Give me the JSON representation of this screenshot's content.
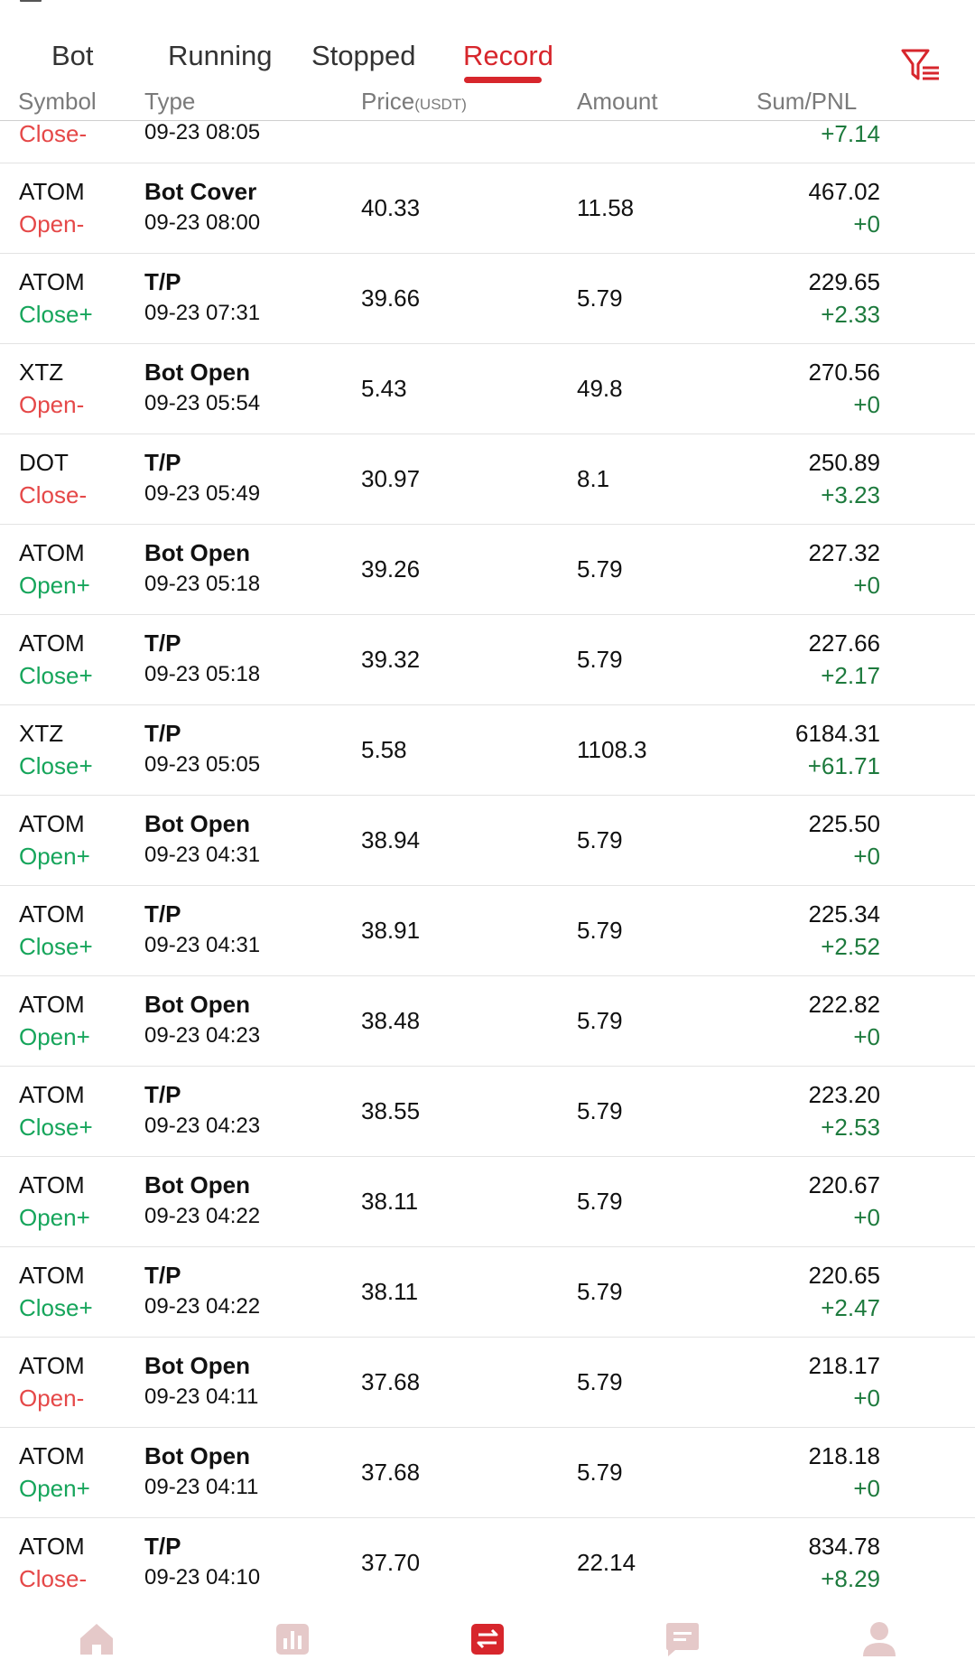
{
  "tabs": [
    {
      "label": "Bot",
      "active": false
    },
    {
      "label": "Running",
      "active": false
    },
    {
      "label": "Stopped",
      "active": false
    },
    {
      "label": "Record",
      "active": true
    }
  ],
  "columns": {
    "symbol": "Symbol",
    "type": "Type",
    "price": "Price",
    "price_unit": "(USDT)",
    "amount": "Amount",
    "sum_pnl": "Sum/PNL"
  },
  "partial_row": {
    "side": "Close-",
    "side_sign": "neg",
    "time": "09-23 08:05",
    "pnl": "+7.14"
  },
  "rows": [
    {
      "symbol": "ATOM",
      "side": "Open-",
      "side_sign": "neg",
      "type": "Bot Cover",
      "time": "09-23 08:00",
      "price": "40.33",
      "amount": "11.58",
      "sum": "467.02",
      "pnl": "+0"
    },
    {
      "symbol": "ATOM",
      "side": "Close+",
      "side_sign": "pos",
      "type": "T/P",
      "time": "09-23 07:31",
      "price": "39.66",
      "amount": "5.79",
      "sum": "229.65",
      "pnl": "+2.33"
    },
    {
      "symbol": "XTZ",
      "side": "Open-",
      "side_sign": "neg",
      "type": "Bot Open",
      "time": "09-23 05:54",
      "price": "5.43",
      "amount": "49.8",
      "sum": "270.56",
      "pnl": "+0"
    },
    {
      "symbol": "DOT",
      "side": "Close-",
      "side_sign": "neg",
      "type": "T/P",
      "time": "09-23 05:49",
      "price": "30.97",
      "amount": "8.1",
      "sum": "250.89",
      "pnl": "+3.23"
    },
    {
      "symbol": "ATOM",
      "side": "Open+",
      "side_sign": "pos",
      "type": "Bot Open",
      "time": "09-23 05:18",
      "price": "39.26",
      "amount": "5.79",
      "sum": "227.32",
      "pnl": "+0"
    },
    {
      "symbol": "ATOM",
      "side": "Close+",
      "side_sign": "pos",
      "type": "T/P",
      "time": "09-23 05:18",
      "price": "39.32",
      "amount": "5.79",
      "sum": "227.66",
      "pnl": "+2.17"
    },
    {
      "symbol": "XTZ",
      "side": "Close+",
      "side_sign": "pos",
      "type": "T/P",
      "time": "09-23 05:05",
      "price": "5.58",
      "amount": "1108.3",
      "sum": "6184.31",
      "pnl": "+61.71"
    },
    {
      "symbol": "ATOM",
      "side": "Open+",
      "side_sign": "pos",
      "type": "Bot Open",
      "time": "09-23 04:31",
      "price": "38.94",
      "amount": "5.79",
      "sum": "225.50",
      "pnl": "+0"
    },
    {
      "symbol": "ATOM",
      "side": "Close+",
      "side_sign": "pos",
      "type": "T/P",
      "time": "09-23 04:31",
      "price": "38.91",
      "amount": "5.79",
      "sum": "225.34",
      "pnl": "+2.52"
    },
    {
      "symbol": "ATOM",
      "side": "Open+",
      "side_sign": "pos",
      "type": "Bot Open",
      "time": "09-23 04:23",
      "price": "38.48",
      "amount": "5.79",
      "sum": "222.82",
      "pnl": "+0"
    },
    {
      "symbol": "ATOM",
      "side": "Close+",
      "side_sign": "pos",
      "type": "T/P",
      "time": "09-23 04:23",
      "price": "38.55",
      "amount": "5.79",
      "sum": "223.20",
      "pnl": "+2.53"
    },
    {
      "symbol": "ATOM",
      "side": "Open+",
      "side_sign": "pos",
      "type": "Bot Open",
      "time": "09-23 04:22",
      "price": "38.11",
      "amount": "5.79",
      "sum": "220.67",
      "pnl": "+0"
    },
    {
      "symbol": "ATOM",
      "side": "Close+",
      "side_sign": "pos",
      "type": "T/P",
      "time": "09-23 04:22",
      "price": "38.11",
      "amount": "5.79",
      "sum": "220.65",
      "pnl": "+2.47"
    },
    {
      "symbol": "ATOM",
      "side": "Open-",
      "side_sign": "neg",
      "type": "Bot Open",
      "time": "09-23 04:11",
      "price": "37.68",
      "amount": "5.79",
      "sum": "218.17",
      "pnl": "+0"
    },
    {
      "symbol": "ATOM",
      "side": "Open+",
      "side_sign": "pos",
      "type": "Bot Open",
      "time": "09-23 04:11",
      "price": "37.68",
      "amount": "5.79",
      "sum": "218.18",
      "pnl": "+0"
    },
    {
      "symbol": "ATOM",
      "side": "Close-",
      "side_sign": "neg",
      "type": "T/P",
      "time": "09-23 04:10",
      "price": "37.70",
      "amount": "22.14",
      "sum": "834.78",
      "pnl": "+8.29"
    }
  ],
  "nav": [
    {
      "icon": "home-icon",
      "active": false
    },
    {
      "icon": "chart-icon",
      "active": false
    },
    {
      "icon": "trade-exchange-icon",
      "active": true
    },
    {
      "icon": "message-icon",
      "active": false
    },
    {
      "icon": "profile-icon",
      "active": false
    }
  ],
  "colors": {
    "accent": "#d7262c",
    "positive": "#16a55b",
    "negative": "#e54848",
    "pnl": "#1d7a3d",
    "nav_inactive": "#e5c9c9"
  }
}
